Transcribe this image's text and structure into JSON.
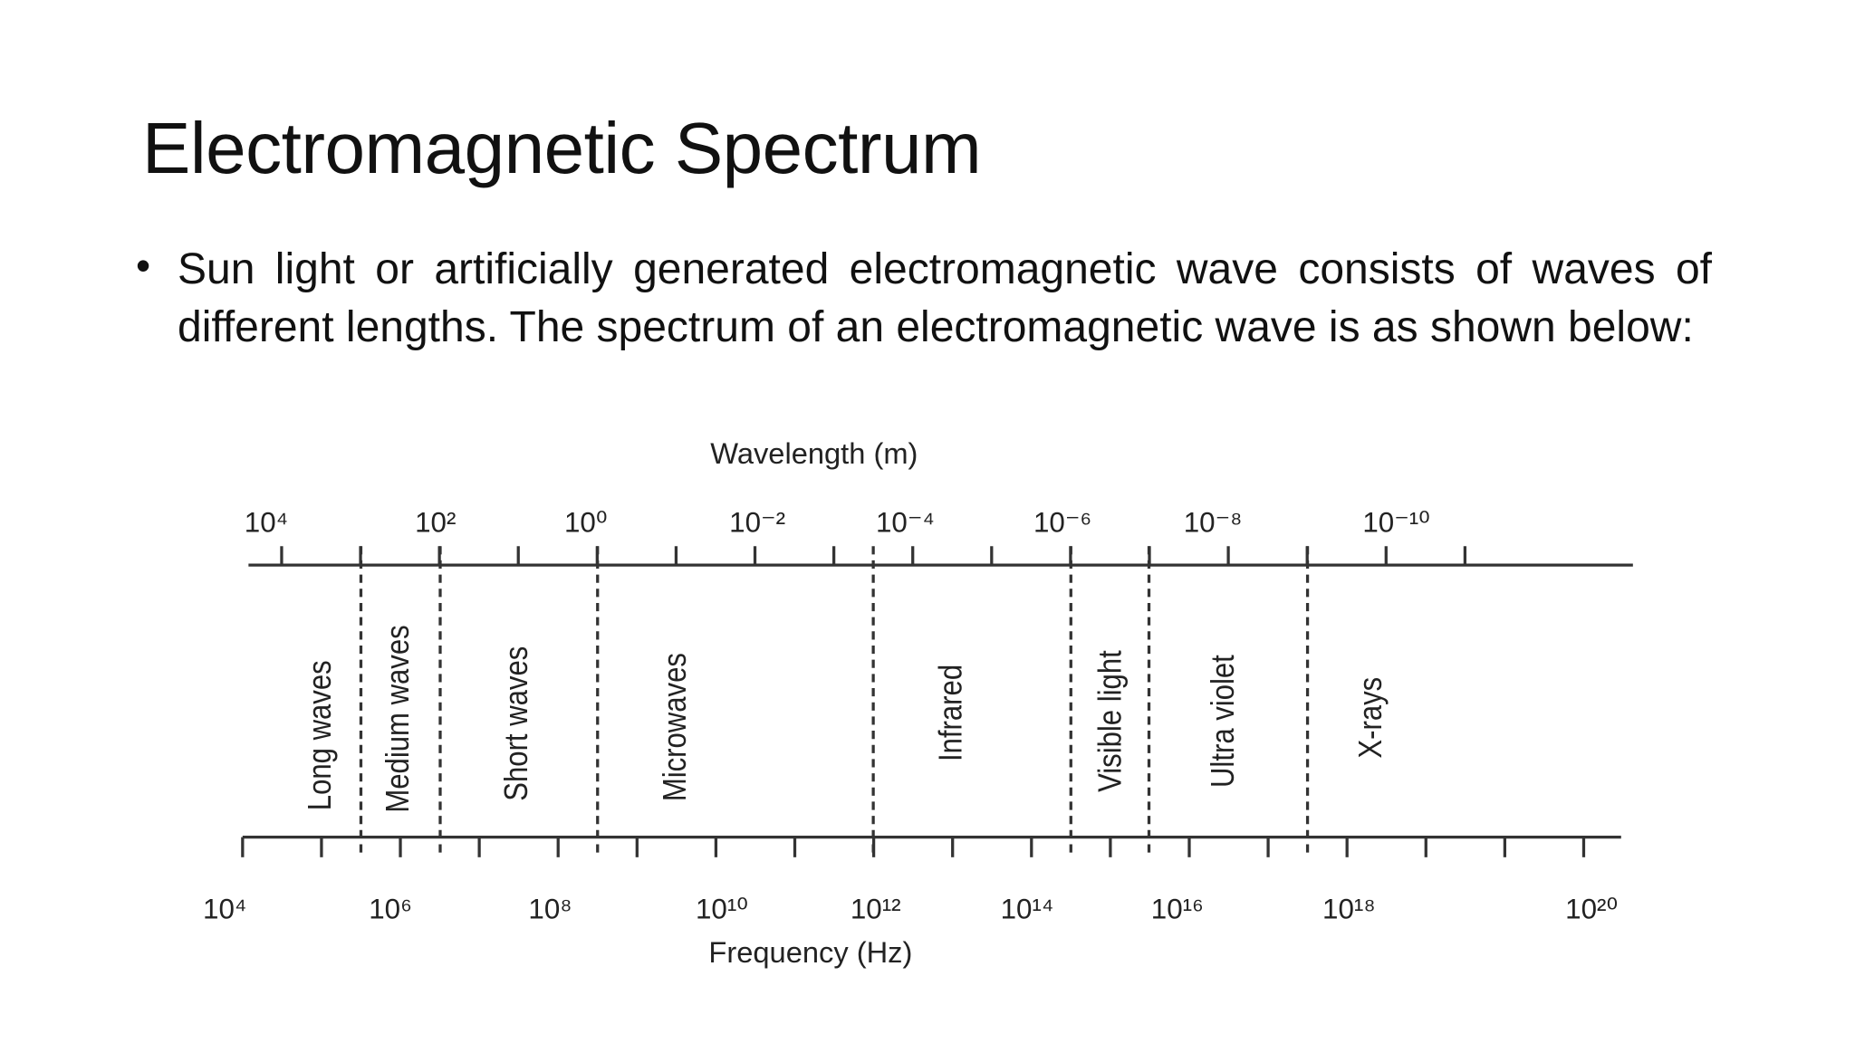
{
  "slide": {
    "title": "Electromagnetic Spectrum",
    "bullet": "Sun light or artificially generated electromagnetic wave consists of waves of different lengths. The spectrum of an electromagnetic wave is as shown below:",
    "diagram": {
      "wavelength_label": "Wavelength (m)",
      "wavelength_ticks": [
        "10⁴",
        "10²",
        "10⁰",
        "10⁻²",
        "10⁻⁴",
        "10⁻⁶",
        "10⁻⁸",
        "10⁻¹⁰"
      ],
      "frequency_label": "Frequency (Hz)",
      "frequency_ticks": [
        "10⁴",
        "10⁶",
        "10⁸",
        "10¹⁰",
        "10¹²",
        "10¹⁴",
        "10¹⁶",
        "10¹⁸",
        "10²⁰"
      ],
      "bands": [
        "Long waves",
        "Medium waves",
        "Short waves",
        "Microwaves",
        "Infrared",
        "Visible light",
        "Ultra violet",
        "X-rays"
      ]
    }
  }
}
